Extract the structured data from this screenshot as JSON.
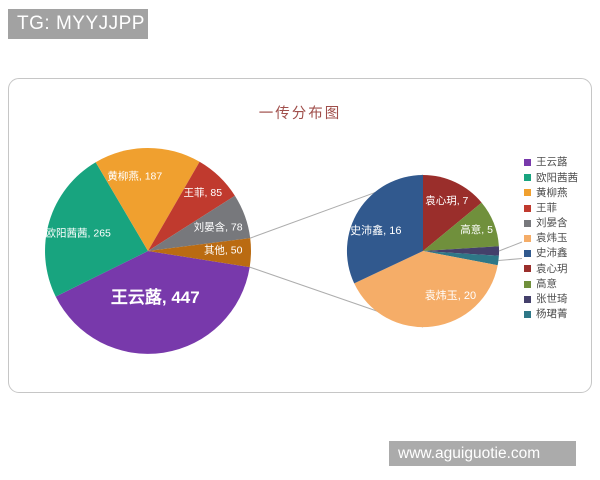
{
  "badge": {
    "text": "TG: MYYJJPP"
  },
  "watermark": {
    "text": "www.aguiguotie.com"
  },
  "chart_data": {
    "type": "pie",
    "subtype": "pie-of-pie",
    "title": "一传分布图",
    "legend_position": "right",
    "series": [
      {
        "name": "王云蕗",
        "value": 447
      },
      {
        "name": "欧阳茜茜",
        "value": 265
      },
      {
        "name": "黄柳燕",
        "value": 187
      },
      {
        "name": "王菲",
        "value": 85
      },
      {
        "name": "刘晏含",
        "value": 78
      },
      {
        "name": "袁炜玉",
        "value": 20
      },
      {
        "name": "史沛鑫",
        "value": 16
      },
      {
        "name": "袁心玥",
        "value": 7
      },
      {
        "name": "高意",
        "value": 5
      },
      {
        "name": "张世琦",
        "value": 1
      },
      {
        "name": "杨珺菁",
        "value": 1
      }
    ],
    "other_label": "其他",
    "other_value": 50,
    "main_pie": {
      "start_angle_deg": 99,
      "slices": [
        {
          "name": "王云蕗",
          "value": 447,
          "color": "#7839ab",
          "label": {
            "angle": 171,
            "rf": 0.45,
            "size": 17,
            "bold": true
          }
        },
        {
          "name": "欧阳茜茜",
          "value": 265,
          "color": "#18a47f",
          "label": {
            "angle": 284.5,
            "rf": 0.7,
            "size": 10.5
          }
        },
        {
          "name": "黄柳燕",
          "value": 187,
          "color": "#f0a02f",
          "label": {
            "angle": 350,
            "rf": 0.74,
            "size": 10.5
          }
        },
        {
          "name": "王菲",
          "value": 85,
          "color": "#c03a2e",
          "label": {
            "angle": 43,
            "rf": 0.78,
            "size": 10.5
          }
        },
        {
          "name": "刘晏含",
          "value": 78,
          "color": "#77787c",
          "label": {
            "angle": 71,
            "rf": 0.72,
            "size": 10.5
          }
        },
        {
          "name": "其他",
          "value": 50,
          "color": "#ba6b12",
          "label": {
            "angle": 89,
            "rf": 0.73,
            "size": 10.5
          }
        }
      ]
    },
    "secondary_pie": {
      "start_angle_deg": 0,
      "slices": [
        {
          "name": "袁心玥",
          "value": 7,
          "color": "#9a2e2b",
          "label": {
            "angle": 25,
            "rf": 0.74,
            "size": 10.5
          }
        },
        {
          "name": "高意",
          "value": 5,
          "color": "#70903c",
          "label": {
            "angle": 68,
            "rf": 0.76,
            "size": 10.5
          }
        },
        {
          "name": "张世琦",
          "value": 1,
          "color": "#44406b",
          "leader": true
        },
        {
          "name": "杨珺菁",
          "value": 1,
          "color": "#2e7787",
          "leader": true
        },
        {
          "name": "袁炜玉",
          "value": 20,
          "color": "#f5ad68",
          "label": {
            "angle": 148,
            "rf": 0.68,
            "size": 11
          }
        },
        {
          "name": "史沛鑫",
          "value": 16,
          "color": "#31598e",
          "label": {
            "angle": 294,
            "rf": 0.68,
            "size": 11
          }
        }
      ]
    },
    "legend": {
      "items": [
        {
          "label": "王云蕗",
          "color": "#7839ab"
        },
        {
          "label": "欧阳茜茜",
          "color": "#18a47f"
        },
        {
          "label": "黄柳燕",
          "color": "#f0a02f"
        },
        {
          "label": "王菲",
          "color": "#c03a2e"
        },
        {
          "label": "刘晏含",
          "color": "#77787c"
        },
        {
          "label": "袁炜玉",
          "color": "#f5ad68"
        },
        {
          "label": "史沛鑫",
          "color": "#31598e"
        },
        {
          "label": "袁心玥",
          "color": "#9a2e2b"
        },
        {
          "label": "高意",
          "color": "#70903c"
        },
        {
          "label": "张世琦",
          "color": "#44406b"
        },
        {
          "label": "杨珺菁",
          "color": "#2e7787"
        }
      ]
    }
  }
}
